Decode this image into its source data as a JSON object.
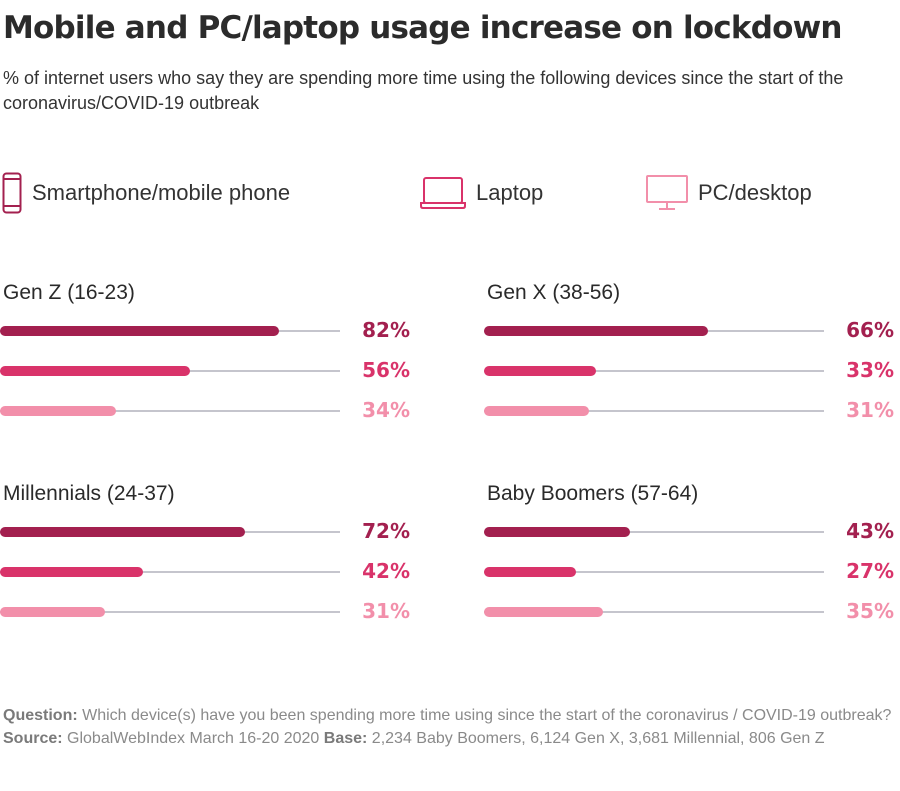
{
  "title": "Mobile and PC/laptop usage increase on lockdown",
  "subtitle": "% of internet users who say they are spending more time using the following devices since the start of the coronavirus/COVID-19 outbreak",
  "legend": [
    {
      "label": "Smartphone/mobile phone",
      "icon": "smartphone-icon",
      "color": "#a3204f"
    },
    {
      "label": "Laptop",
      "icon": "laptop-icon",
      "color": "#d9336a"
    },
    {
      "label": "PC/desktop",
      "icon": "desktop-icon",
      "color": "#f28faa"
    }
  ],
  "chart_data": {
    "type": "bar",
    "orientation": "horizontal",
    "title": "Mobile and PC/laptop usage increase on lockdown",
    "subtitle": "% of internet users who say they are spending more time using the following devices since the start of the coronavirus/COVID-19 outbreak",
    "xlim": [
      0,
      100
    ],
    "grid": false,
    "legend_position": "top-left",
    "series_names": [
      "Smartphone/mobile phone",
      "Laptop",
      "PC/desktop"
    ],
    "series_colors": [
      "#a3204f",
      "#d9336a",
      "#f28faa"
    ],
    "panels": [
      {
        "label": "Gen Z (16-23)",
        "values": [
          82,
          56,
          34
        ],
        "labels": [
          "82%",
          "56%",
          "34%"
        ]
      },
      {
        "label": "Gen X (38-56)",
        "values": [
          66,
          33,
          31
        ],
        "labels": [
          "66%",
          "33%",
          "31%"
        ]
      },
      {
        "label": "Millennials (24-37)",
        "values": [
          72,
          42,
          31
        ],
        "labels": [
          "72%",
          "42%",
          "31%"
        ]
      },
      {
        "label": "Baby Boomers (57-64)",
        "values": [
          43,
          27,
          35
        ],
        "labels": [
          "43%",
          "27%",
          "35%"
        ]
      }
    ]
  },
  "footnote": {
    "question_label": "Question:",
    "question_text": " Which device(s) have you been spending more time using since the start of the coronavirus / COVID-19 outbreak? ",
    "source_label": "Source:",
    "source_text": " GlobalWebIndex March 16-20 2020 ",
    "base_label": "Base:",
    "base_text": " 2,234 Baby Boomers, 6,124 Gen X, 3,681 Millennial, 806 Gen Z"
  }
}
